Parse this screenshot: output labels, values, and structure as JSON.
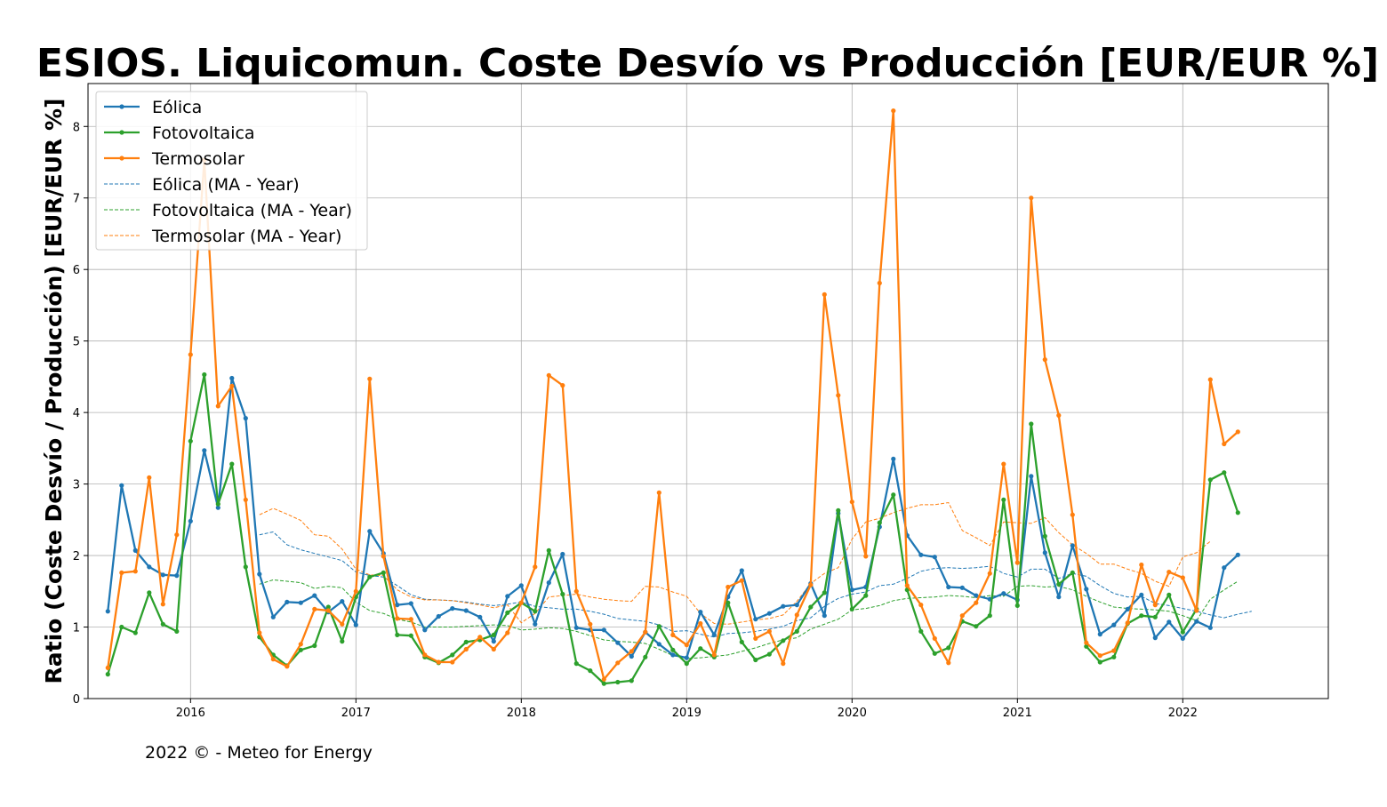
{
  "chart_data": {
    "type": "line",
    "title": "ESIOS. Liquicomun. Coste Desvío vs Producción [EUR/EUR %]",
    "ylabel": "Ratio (Coste Desvío / Producción) [EUR/EUR %]",
    "xlabel": "",
    "xlim": [
      2015.38,
      2022.88
    ],
    "ylim": [
      0,
      8.6
    ],
    "x_ticks": [
      2016,
      2017,
      2018,
      2019,
      2020,
      2021,
      2022
    ],
    "y_ticks": [
      0,
      1,
      2,
      3,
      4,
      5,
      6,
      7,
      8
    ],
    "grid": true,
    "legend_position": "top-left",
    "x_start": "2015-07",
    "x_step": "1 month",
    "series": [
      {
        "name": "Eólica",
        "style": "solid-marker",
        "color": "#1f77b4",
        "values": [
          1.22,
          2.98,
          2.07,
          1.84,
          1.73,
          1.72,
          2.48,
          3.47,
          2.67,
          4.48,
          3.92,
          1.74,
          1.14,
          1.35,
          1.34,
          1.44,
          1.21,
          1.36,
          1.03,
          2.34,
          2.03,
          1.31,
          1.33,
          0.96,
          1.15,
          1.26,
          1.23,
          1.14,
          0.8,
          1.43,
          1.58,
          1.04,
          1.62,
          2.02,
          0.99,
          0.96,
          0.96,
          0.78,
          0.59,
          0.93,
          0.76,
          0.61,
          0.57,
          1.21,
          0.89,
          1.42,
          1.79,
          1.11,
          1.19,
          1.29,
          1.31,
          1.61,
          1.16,
          2.59,
          1.52,
          1.56,
          2.4,
          3.35,
          2.28,
          2.01,
          1.98,
          1.56,
          1.55,
          1.44,
          1.39,
          1.47,
          1.38,
          3.11,
          2.04,
          1.42,
          2.14,
          1.53,
          0.9,
          1.03,
          1.25,
          1.45,
          0.85,
          1.07,
          0.84,
          1.08,
          0.99,
          1.83,
          2.01
        ]
      },
      {
        "name": "Fotovoltaica",
        "style": "solid-marker",
        "color": "#2ca02c",
        "values": [
          0.34,
          1.0,
          0.92,
          1.48,
          1.04,
          0.94,
          3.6,
          4.53,
          2.72,
          3.28,
          1.84,
          0.86,
          0.61,
          0.46,
          0.68,
          0.74,
          1.28,
          0.8,
          1.42,
          1.7,
          1.76,
          0.89,
          0.88,
          0.58,
          0.5,
          0.61,
          0.79,
          0.82,
          0.89,
          1.2,
          1.34,
          1.22,
          2.07,
          1.46,
          0.49,
          0.39,
          0.21,
          0.23,
          0.25,
          0.58,
          1.01,
          0.68,
          0.49,
          0.7,
          0.58,
          1.34,
          0.79,
          0.54,
          0.62,
          0.81,
          0.94,
          1.28,
          1.48,
          2.63,
          1.25,
          1.44,
          2.46,
          2.85,
          1.52,
          0.94,
          0.63,
          0.71,
          1.08,
          1.01,
          1.16,
          2.78,
          1.3,
          3.84,
          2.27,
          1.6,
          1.76,
          0.73,
          0.51,
          0.58,
          1.05,
          1.16,
          1.14,
          1.45,
          0.93,
          1.25,
          3.06,
          3.16,
          2.6
        ]
      },
      {
        "name": "Termosolar",
        "style": "solid-marker",
        "color": "#ff7f0e",
        "values": [
          0.43,
          1.76,
          1.78,
          3.09,
          1.32,
          2.29,
          4.81,
          7.53,
          4.09,
          4.37,
          2.78,
          0.92,
          0.55,
          0.45,
          0.76,
          1.25,
          1.23,
          1.04,
          1.5,
          4.47,
          1.99,
          1.12,
          1.11,
          0.61,
          0.51,
          0.51,
          0.69,
          0.86,
          0.69,
          0.92,
          1.34,
          1.84,
          4.52,
          4.38,
          1.5,
          1.04,
          0.27,
          0.5,
          0.66,
          0.93,
          2.88,
          0.89,
          0.75,
          1.05,
          0.61,
          1.56,
          1.65,
          0.84,
          0.94,
          0.49,
          1.17,
          1.59,
          5.65,
          4.24,
          2.75,
          1.99,
          5.81,
          8.22,
          1.58,
          1.31,
          0.84,
          0.5,
          1.16,
          1.34,
          1.75,
          3.28,
          1.9,
          7.0,
          4.74,
          3.96,
          2.57,
          0.78,
          0.6,
          0.67,
          1.06,
          1.87,
          1.31,
          1.77,
          1.69,
          1.23,
          4.46,
          3.56,
          3.73
        ]
      },
      {
        "name": "Eólica (MA - Year)",
        "style": "dashed",
        "color": "#1f77b4",
        "x_offset": 11,
        "values": [
          2.29,
          2.33,
          2.15,
          2.08,
          2.03,
          1.98,
          1.93,
          1.77,
          1.72,
          1.7,
          1.58,
          1.45,
          1.39,
          1.38,
          1.37,
          1.35,
          1.32,
          1.3,
          1.32,
          1.35,
          1.29,
          1.27,
          1.25,
          1.25,
          1.22,
          1.18,
          1.12,
          1.1,
          1.08,
          1.03,
          0.94,
          0.95,
          0.9,
          0.86,
          0.91,
          0.92,
          0.94,
          0.97,
          1.01,
          1.09,
          1.13,
          1.29,
          1.4,
          1.46,
          1.49,
          1.58,
          1.6,
          1.68,
          1.78,
          1.82,
          1.83,
          1.82,
          1.83,
          1.85,
          1.75,
          1.7,
          1.81,
          1.81,
          1.68,
          1.75,
          1.71,
          1.58,
          1.47,
          1.42,
          1.43,
          1.33,
          1.3,
          1.26,
          1.22,
          1.17,
          1.13,
          1.18,
          1.22
        ]
      },
      {
        "name": "Fotovoltaica (MA - Year)",
        "style": "dashed",
        "color": "#2ca02c",
        "x_offset": 11,
        "values": [
          1.6,
          1.66,
          1.64,
          1.62,
          1.54,
          1.57,
          1.55,
          1.35,
          1.23,
          1.19,
          1.11,
          1.07,
          1.0,
          1.0,
          1.0,
          1.01,
          1.02,
          1.03,
          1.02,
          0.96,
          0.97,
          0.99,
          0.98,
          0.94,
          0.88,
          0.82,
          0.8,
          0.79,
          0.77,
          0.69,
          0.6,
          0.56,
          0.57,
          0.59,
          0.61,
          0.66,
          0.71,
          0.77,
          0.82,
          0.85,
          0.97,
          1.04,
          1.11,
          1.24,
          1.26,
          1.3,
          1.37,
          1.4,
          1.41,
          1.42,
          1.44,
          1.43,
          1.41,
          1.44,
          1.43,
          1.57,
          1.58,
          1.56,
          1.57,
          1.52,
          1.43,
          1.35,
          1.28,
          1.26,
          1.25,
          1.24,
          1.22,
          1.16,
          1.09,
          1.39,
          1.52,
          1.64
        ]
      },
      {
        "name": "Termosolar (MA - Year)",
        "style": "dashed",
        "color": "#ff7f0e",
        "x_offset": 11,
        "values": [
          2.57,
          2.66,
          2.58,
          2.49,
          2.29,
          2.27,
          2.09,
          1.81,
          1.73,
          1.72,
          1.52,
          1.42,
          1.38,
          1.38,
          1.37,
          1.34,
          1.31,
          1.27,
          1.31,
          1.06,
          1.19,
          1.42,
          1.44,
          1.46,
          1.42,
          1.39,
          1.37,
          1.36,
          1.57,
          1.56,
          1.49,
          1.43,
          1.19,
          1.05,
          1.04,
          1.07,
          1.1,
          1.12,
          1.17,
          1.36,
          1.61,
          1.75,
          1.83,
          2.23,
          2.47,
          2.52,
          2.6,
          2.66,
          2.71,
          2.71,
          2.74,
          2.35,
          2.25,
          2.14,
          2.47,
          2.46,
          2.45,
          2.53,
          2.32,
          2.15,
          2.03,
          1.88,
          1.88,
          1.81,
          1.75,
          1.64,
          1.57,
          1.98,
          2.04,
          2.2
        ]
      }
    ],
    "footer": "2022 © - Meteo for Energy"
  }
}
